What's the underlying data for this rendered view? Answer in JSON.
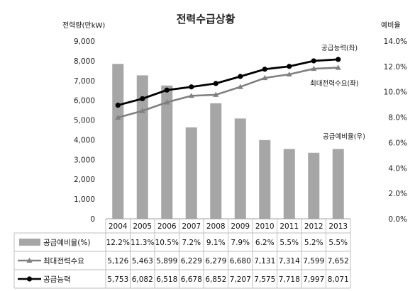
{
  "chart_data": {
    "type": "bar",
    "title": "전력수급상황",
    "ylabel_left": "전력량(만kW)",
    "ylabel_right": "예비율",
    "categories": [
      "2004",
      "2005",
      "2006",
      "2007",
      "2008",
      "2009",
      "2010",
      "2011",
      "2012",
      "2013"
    ],
    "left_axis": {
      "min": 0,
      "max": 9000,
      "step": 1000,
      "ticks": [
        "0",
        "1,000",
        "2,000",
        "3,000",
        "4,000",
        "5,000",
        "6,000",
        "7,000",
        "8,000",
        "9,000"
      ]
    },
    "right_axis": {
      "min": 0,
      "max": 14,
      "step": 2,
      "ticks": [
        "0.0%",
        "2.0%",
        "4.0%",
        "6.0%",
        "8.0%",
        "10.0%",
        "12.0%",
        "14.0%"
      ]
    },
    "series": [
      {
        "name": "공급예비율(%)",
        "type": "bar",
        "axis": "right",
        "color": "#a6a6a6",
        "values": [
          12.2,
          11.3,
          10.5,
          7.2,
          9.1,
          7.9,
          6.2,
          5.5,
          5.2,
          5.5
        ],
        "labels": [
          "12.2%",
          "11.3%",
          "10.5%",
          "7.2%",
          "9.1%",
          "7.9%",
          "6.2%",
          "5.5%",
          "5.2%",
          "5.5%"
        ],
        "annotation": "공급예비율(우)"
      },
      {
        "name": "최대전력수요",
        "type": "line",
        "marker": "triangle",
        "axis": "left",
        "color": "#808080",
        "values": [
          5126,
          5463,
          5899,
          6229,
          6279,
          6680,
          7131,
          7314,
          7599,
          7652
        ],
        "labels": [
          "5,126",
          "5,463",
          "5,899",
          "6,229",
          "6,279",
          "6,680",
          "7,131",
          "7,314",
          "7,599",
          "7,652"
        ],
        "annotation": "최대전력수요(좌)"
      },
      {
        "name": "공급능력",
        "type": "line",
        "marker": "circle",
        "axis": "left",
        "color": "#000000",
        "values": [
          5753,
          6082,
          6518,
          6678,
          6852,
          7207,
          7575,
          7718,
          7997,
          8071
        ],
        "labels": [
          "5,753",
          "6,082",
          "6,518",
          "6,678",
          "6,852",
          "7,207",
          "7,575",
          "7,718",
          "7,997",
          "8,071"
        ],
        "annotation": "공급능력(좌)"
      }
    ],
    "grid": false,
    "legend": "data-table-below"
  }
}
